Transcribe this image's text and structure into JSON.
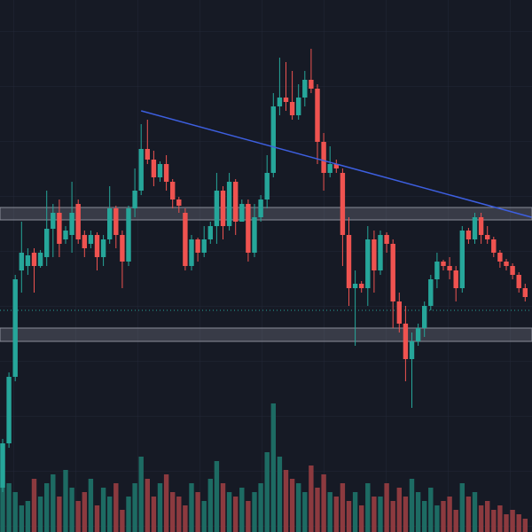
{
  "chart_data": {
    "type": "candlestick",
    "open": [
      50,
      100,
      175,
      295,
      300,
      315,
      300,
      310,
      342,
      360,
      330,
      335,
      370,
      335,
      325,
      335,
      310,
      330,
      365,
      335,
      305,
      365,
      385,
      432,
      420,
      400,
      415,
      395,
      375,
      360,
      300,
      330,
      315,
      330,
      345,
      385,
      345,
      395,
      350,
      370,
      315,
      355,
      375,
      405,
      480,
      490,
      485,
      470,
      490,
      510,
      500,
      440,
      405,
      415,
      405,
      335,
      275,
      280,
      275,
      330,
      295,
      335,
      325,
      260,
      235,
      195,
      215,
      230,
      255,
      285,
      305,
      300,
      295,
      275,
      340,
      330,
      355,
      335,
      330,
      315,
      305,
      300,
      290,
      275
    ],
    "high": [
      105,
      180,
      290,
      350,
      320,
      320,
      318,
      385,
      370,
      375,
      345,
      395,
      375,
      340,
      340,
      338,
      335,
      390,
      368,
      340,
      368,
      410,
      460,
      465,
      430,
      418,
      425,
      398,
      378,
      365,
      335,
      332,
      345,
      350,
      405,
      390,
      405,
      398,
      375,
      375,
      370,
      380,
      425,
      495,
      535,
      530,
      520,
      505,
      520,
      545,
      505,
      450,
      435,
      420,
      410,
      355,
      295,
      283,
      345,
      340,
      340,
      338,
      330,
      270,
      255,
      225,
      235,
      260,
      290,
      315,
      307,
      310,
      300,
      345,
      343,
      360,
      360,
      345,
      333,
      318,
      308,
      303,
      293,
      280
    ],
    "low": [
      45,
      95,
      170,
      270,
      290,
      270,
      298,
      300,
      310,
      310,
      325,
      315,
      325,
      310,
      320,
      295,
      300,
      325,
      320,
      275,
      300,
      355,
      380,
      415,
      390,
      395,
      385,
      365,
      360,
      295,
      295,
      305,
      310,
      325,
      325,
      330,
      340,
      335,
      350,
      305,
      310,
      350,
      365,
      400,
      470,
      475,
      465,
      465,
      480,
      495,
      415,
      385,
      400,
      405,
      300,
      255,
      210,
      270,
      255,
      270,
      290,
      315,
      230,
      225,
      170,
      140,
      210,
      220,
      250,
      275,
      295,
      285,
      260,
      270,
      325,
      325,
      325,
      325,
      310,
      298,
      295,
      285,
      270,
      260
    ],
    "close": [
      100,
      175,
      285,
      315,
      312,
      300,
      315,
      342,
      360,
      325,
      340,
      360,
      330,
      320,
      335,
      310,
      330,
      365,
      335,
      305,
      365,
      385,
      432,
      420,
      400,
      415,
      395,
      375,
      368,
      300,
      330,
      315,
      330,
      345,
      385,
      345,
      395,
      350,
      370,
      315,
      355,
      375,
      405,
      480,
      490,
      485,
      470,
      490,
      510,
      500,
      440,
      405,
      415,
      410,
      335,
      275,
      280,
      275,
      330,
      295,
      335,
      325,
      260,
      235,
      195,
      215,
      230,
      255,
      285,
      305,
      300,
      295,
      275,
      340,
      330,
      355,
      335,
      330,
      315,
      305,
      300,
      290,
      275,
      265
    ],
    "ylim": [
      0,
      600
    ],
    "up_color": "#26a69a",
    "down_color": "#ef5350",
    "volume": {
      "values": [
        100,
        55,
        45,
        30,
        35,
        60,
        40,
        55,
        65,
        40,
        70,
        50,
        35,
        45,
        60,
        30,
        50,
        40,
        55,
        25,
        40,
        55,
        85,
        60,
        40,
        55,
        65,
        45,
        40,
        30,
        55,
        45,
        35,
        60,
        80,
        55,
        45,
        40,
        50,
        35,
        45,
        55,
        90,
        145,
        85,
        70,
        60,
        55,
        45,
        75,
        50,
        65,
        45,
        40,
        55,
        35,
        45,
        30,
        55,
        40,
        40,
        55,
        35,
        50,
        40,
        60,
        45,
        35,
        50,
        30,
        35,
        40,
        25,
        55,
        40,
        45,
        30,
        35,
        25,
        30,
        20,
        25,
        20,
        15
      ],
      "ylim": [
        0,
        600
      ],
      "up_color": "#1d6b63",
      "down_color": "#8c3a3f"
    },
    "trendline": {
      "start": [
        22,
        475
      ],
      "end": [
        84,
        355
      ],
      "color": "#3d5fe0"
    },
    "zones": [
      [
        352,
        366
      ],
      [
        215,
        230
      ]
    ],
    "reference_line": 250,
    "grid": true
  }
}
